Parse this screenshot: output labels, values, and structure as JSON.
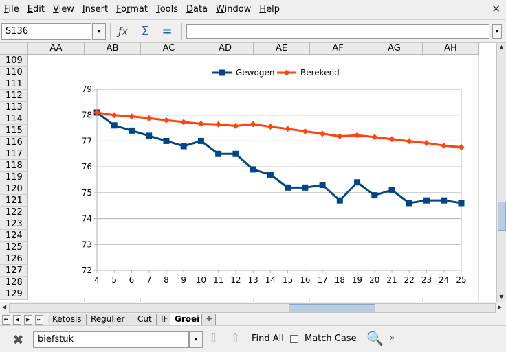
{
  "menu": {
    "items": [
      {
        "label": "File",
        "mn": "F",
        "rest": "ile"
      },
      {
        "label": "Edit",
        "mn": "E",
        "rest": "dit"
      },
      {
        "label": "View",
        "mn": "V",
        "rest": "iew"
      },
      {
        "label": "Insert",
        "mn": "I",
        "rest": "nsert"
      },
      {
        "label": "Format",
        "mn": "F",
        "rest": "o",
        "mn2": "r",
        "rest2": "mat"
      },
      {
        "label": "Tools",
        "mn": "T",
        "rest": "ools"
      },
      {
        "label": "Data",
        "mn": "D",
        "rest": "ata"
      },
      {
        "label": "Window",
        "mn": "W",
        "rest": "indow"
      },
      {
        "label": "Help",
        "mn": "H",
        "rest": "elp"
      }
    ],
    "close_glyph": "✕"
  },
  "formula_bar": {
    "name_box": "S136",
    "dropdown_glyph": "▾",
    "function_wizard_glyph": "ƒx",
    "sum_glyph": "Σ",
    "equals_glyph": "=",
    "formula_value": ""
  },
  "columns": [
    "AA",
    "AB",
    "AC",
    "AD",
    "AE",
    "AF",
    "AG",
    "AH"
  ],
  "rows": [
    "109",
    "110",
    "111",
    "112",
    "113",
    "114",
    "115",
    "116",
    "117",
    "118",
    "119",
    "120",
    "121",
    "122",
    "123",
    "124",
    "125",
    "126",
    "127",
    "128",
    "129"
  ],
  "chart_data": {
    "type": "line",
    "x": [
      4,
      5,
      6,
      7,
      8,
      9,
      10,
      11,
      12,
      13,
      14,
      15,
      16,
      17,
      18,
      19,
      20,
      21,
      22,
      23,
      24,
      25
    ],
    "series": [
      {
        "name": "Gewogen",
        "color": "#004586",
        "marker": "square",
        "values": [
          78.1,
          77.6,
          77.4,
          77.2,
          77.0,
          76.8,
          77.0,
          76.5,
          76.5,
          75.9,
          75.7,
          75.2,
          75.2,
          75.3,
          74.7,
          75.4,
          74.9,
          75.1,
          74.6,
          74.7,
          74.7,
          74.6
        ]
      },
      {
        "name": "Berekend",
        "color": "#ff420e",
        "marker": "diamond",
        "values": [
          78.1,
          78.0,
          77.95,
          77.88,
          77.8,
          77.73,
          77.66,
          77.64,
          77.58,
          77.65,
          77.55,
          77.47,
          77.37,
          77.28,
          77.18,
          77.22,
          77.15,
          77.07,
          76.99,
          76.92,
          76.82,
          76.76
        ]
      }
    ],
    "ylim": [
      72,
      79
    ],
    "yticks": [
      72,
      73,
      74,
      75,
      76,
      77,
      78,
      79
    ],
    "xlim": [
      4,
      25
    ],
    "grid": true,
    "legend_position": "top"
  },
  "sheet_tabs": {
    "nav": [
      "⏮",
      "◀",
      "▶",
      "⏭"
    ],
    "tabs": [
      "Ketosis",
      "Regulier",
      "Cut",
      "IF",
      "Groei"
    ],
    "active": "Groei",
    "add_glyph": "✚"
  },
  "find_bar": {
    "close_glyph": "✖",
    "search_value": "biefstuk",
    "dropdown_glyph": "▾",
    "down_glyph": "⇩",
    "up_glyph": "⇧",
    "find_all_label": "Find All",
    "match_case_label": "Match Case",
    "options_glyph": "🔍",
    "more_glyph": "»"
  },
  "scroll": {
    "up": "▲",
    "down": "▼",
    "left": "◀",
    "right": "▶"
  }
}
